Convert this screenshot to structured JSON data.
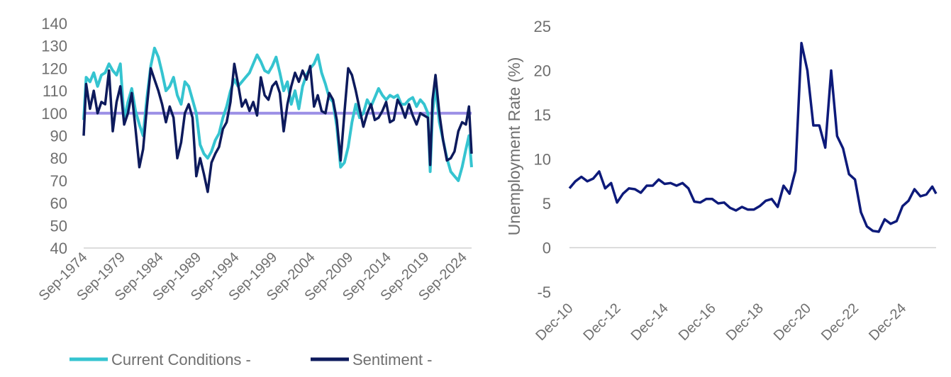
{
  "chart_data": [
    {
      "type": "line",
      "title": "",
      "xlabel": "",
      "ylabel": "",
      "ylim": [
        40,
        140
      ],
      "y_ticks": [
        40,
        50,
        60,
        70,
        80,
        90,
        100,
        110,
        120,
        130,
        140
      ],
      "x_tick_labels": [
        "Sep-1974",
        "Sep-1979",
        "Sep-1984",
        "Sep-1989",
        "Sep-1994",
        "Sep-1999",
        "Sep-2004",
        "Sep-2009",
        "Sep-2014",
        "Sep-2019",
        "Sep-2024"
      ],
      "x_tick_years": [
        1974.67,
        1979.67,
        1984.67,
        1989.67,
        1994.67,
        1999.67,
        2004.67,
        2009.67,
        2014.67,
        2019.67,
        2024.67
      ],
      "x_range": [
        1974.67,
        2025.75
      ],
      "grid": false,
      "legend_position": "bottom",
      "reference_line": {
        "y": 100,
        "color": "#9b8fe6"
      },
      "series": [
        {
          "name": "Current Conditions -",
          "color": "#35c4d0",
          "x": [
            1974.67,
            1975.0,
            1975.5,
            1976.0,
            1976.5,
            1977.0,
            1977.5,
            1978.0,
            1978.5,
            1979.0,
            1979.5,
            1980.0,
            1980.5,
            1981.0,
            1981.5,
            1982.0,
            1982.5,
            1983.0,
            1983.5,
            1984.0,
            1984.5,
            1985.0,
            1985.5,
            1986.0,
            1986.5,
            1987.0,
            1987.5,
            1988.0,
            1988.5,
            1989.0,
            1989.5,
            1990.0,
            1990.5,
            1991.0,
            1991.5,
            1992.0,
            1992.5,
            1993.0,
            1993.5,
            1994.0,
            1994.5,
            1995.0,
            1995.5,
            1996.0,
            1996.5,
            1997.0,
            1997.5,
            1998.0,
            1998.5,
            1999.0,
            1999.5,
            2000.0,
            2000.5,
            2001.0,
            2001.5,
            2002.0,
            2002.5,
            2003.0,
            2003.5,
            2004.0,
            2004.5,
            2005.0,
            2005.5,
            2006.0,
            2006.5,
            2007.0,
            2007.5,
            2008.0,
            2008.5,
            2009.0,
            2009.5,
            2010.0,
            2010.5,
            2011.0,
            2011.5,
            2012.0,
            2012.5,
            2013.0,
            2013.5,
            2014.0,
            2014.5,
            2015.0,
            2015.5,
            2016.0,
            2016.5,
            2017.0,
            2017.5,
            2018.0,
            2018.5,
            2019.0,
            2019.5,
            2020.0,
            2020.3,
            2020.6,
            2021.0,
            2021.5,
            2022.0,
            2022.5,
            2023.0,
            2023.5,
            2024.0,
            2024.5,
            2025.0,
            2025.4,
            2025.75
          ],
          "values": [
            97,
            116,
            114,
            118,
            112,
            117,
            118,
            122,
            119,
            117,
            122,
            97,
            105,
            111,
            101,
            95,
            90,
            107,
            121,
            129,
            125,
            118,
            110,
            112,
            116,
            108,
            104,
            114,
            112,
            106,
            100,
            86,
            82,
            80,
            83,
            88,
            91,
            98,
            103,
            110,
            115,
            112,
            114,
            116,
            118,
            122,
            126,
            123,
            119,
            118,
            121,
            125,
            118,
            110,
            114,
            104,
            110,
            102,
            112,
            117,
            120,
            122,
            126,
            118,
            113,
            107,
            105,
            94,
            76,
            78,
            85,
            96,
            104,
            98,
            100,
            106,
            103,
            107,
            111,
            108,
            106,
            108,
            107,
            108,
            104,
            104,
            106,
            107,
            103,
            106,
            104,
            100,
            74,
            100,
            112,
            96,
            88,
            80,
            74,
            72,
            70,
            76,
            84,
            90,
            76
          ]
        },
        {
          "name": "Sentiment -",
          "color": "#0d1a5c",
          "x": [
            1974.67,
            1975.0,
            1975.5,
            1976.0,
            1976.5,
            1977.0,
            1977.5,
            1978.0,
            1978.5,
            1979.0,
            1979.5,
            1980.0,
            1980.5,
            1981.0,
            1981.5,
            1982.0,
            1982.5,
            1983.0,
            1983.5,
            1984.0,
            1984.5,
            1985.0,
            1985.5,
            1986.0,
            1986.5,
            1987.0,
            1987.5,
            1988.0,
            1988.5,
            1989.0,
            1989.5,
            1990.0,
            1990.5,
            1991.0,
            1991.5,
            1992.0,
            1992.5,
            1993.0,
            1993.5,
            1994.0,
            1994.5,
            1995.0,
            1995.5,
            1996.0,
            1996.5,
            1997.0,
            1997.5,
            1998.0,
            1998.5,
            1999.0,
            1999.5,
            2000.0,
            2000.5,
            2001.0,
            2001.5,
            2002.0,
            2002.5,
            2003.0,
            2003.5,
            2004.0,
            2004.5,
            2005.0,
            2005.5,
            2006.0,
            2006.5,
            2007.0,
            2007.5,
            2008.0,
            2008.5,
            2009.0,
            2009.5,
            2010.0,
            2010.5,
            2011.0,
            2011.5,
            2012.0,
            2012.5,
            2013.0,
            2013.5,
            2014.0,
            2014.5,
            2015.0,
            2015.5,
            2016.0,
            2016.5,
            2017.0,
            2017.5,
            2018.0,
            2018.5,
            2019.0,
            2019.5,
            2020.0,
            2020.3,
            2020.6,
            2021.0,
            2021.5,
            2022.0,
            2022.5,
            2023.0,
            2023.5,
            2024.0,
            2024.5,
            2025.0,
            2025.4,
            2025.75
          ],
          "values": [
            90,
            113,
            102,
            110,
            100,
            105,
            104,
            119,
            92,
            105,
            112,
            95,
            100,
            109,
            93,
            76,
            84,
            103,
            120,
            115,
            110,
            104,
            96,
            103,
            98,
            80,
            87,
            100,
            104,
            98,
            72,
            80,
            73,
            65,
            78,
            82,
            85,
            93,
            96,
            105,
            122,
            113,
            103,
            106,
            101,
            105,
            99,
            116,
            108,
            106,
            112,
            114,
            109,
            92,
            104,
            112,
            118,
            114,
            119,
            115,
            121,
            103,
            108,
            101,
            100,
            109,
            106,
            97,
            79,
            100,
            120,
            117,
            110,
            102,
            94,
            100,
            104,
            97,
            98,
            101,
            105,
            96,
            97,
            106,
            103,
            98,
            104,
            99,
            95,
            100,
            99,
            98,
            77,
            106,
            117,
            100,
            88,
            79,
            80,
            83,
            92,
            96,
            95,
            103,
            82
          ]
        }
      ]
    },
    {
      "type": "line",
      "title": "",
      "xlabel": "",
      "ylabel": "Unemployment Rate (%)",
      "ylim": [
        -5,
        25
      ],
      "y_ticks": [
        -5,
        0,
        5,
        10,
        15,
        20,
        25
      ],
      "x_tick_labels": [
        "Dec-10",
        "Dec-12",
        "Dec-14",
        "Dec-16",
        "Dec-18",
        "Dec-20",
        "Dec-22",
        "Dec-24"
      ],
      "x_tick_years": [
        2010.92,
        2012.92,
        2014.92,
        2016.92,
        2018.92,
        2020.92,
        2022.92,
        2024.92
      ],
      "x_range": [
        2010.92,
        2026.33
      ],
      "grid": false,
      "legend_position": "none",
      "series": [
        {
          "name": "",
          "color": "#0d1a7a",
          "x": [
            2010.92,
            2011.17,
            2011.42,
            2011.67,
            2011.92,
            2012.17,
            2012.42,
            2012.67,
            2012.92,
            2013.17,
            2013.42,
            2013.67,
            2013.92,
            2014.17,
            2014.42,
            2014.67,
            2014.92,
            2015.17,
            2015.42,
            2015.67,
            2015.92,
            2016.17,
            2016.42,
            2016.67,
            2016.92,
            2017.17,
            2017.42,
            2017.67,
            2017.92,
            2018.17,
            2018.42,
            2018.67,
            2018.92,
            2019.17,
            2019.42,
            2019.67,
            2019.92,
            2020.17,
            2020.42,
            2020.67,
            2020.92,
            2021.17,
            2021.42,
            2021.67,
            2021.92,
            2022.17,
            2022.42,
            2022.67,
            2022.92,
            2023.17,
            2023.42,
            2023.67,
            2023.92,
            2024.17,
            2024.42,
            2024.67,
            2024.92,
            2025.17,
            2025.42,
            2025.67,
            2025.92,
            2026.17,
            2026.33
          ],
          "values": [
            6.7,
            7.5,
            8.0,
            7.5,
            7.8,
            8.6,
            6.7,
            7.3,
            5.1,
            6.1,
            6.7,
            6.6,
            6.2,
            7.0,
            7.0,
            7.7,
            7.2,
            7.3,
            7.0,
            7.3,
            6.7,
            5.2,
            5.1,
            5.5,
            5.5,
            5.0,
            5.1,
            4.5,
            4.2,
            4.6,
            4.3,
            4.3,
            4.7,
            5.3,
            5.5,
            4.6,
            7.0,
            6.1,
            8.7,
            23.1,
            20.0,
            13.8,
            13.8,
            11.3,
            20.0,
            12.6,
            11.2,
            8.3,
            7.7,
            4.0,
            2.4,
            1.9,
            1.8,
            3.2,
            2.7,
            3.0,
            4.7,
            5.3,
            6.6,
            5.8,
            6.0,
            6.9,
            6.1
          ]
        }
      ]
    }
  ]
}
